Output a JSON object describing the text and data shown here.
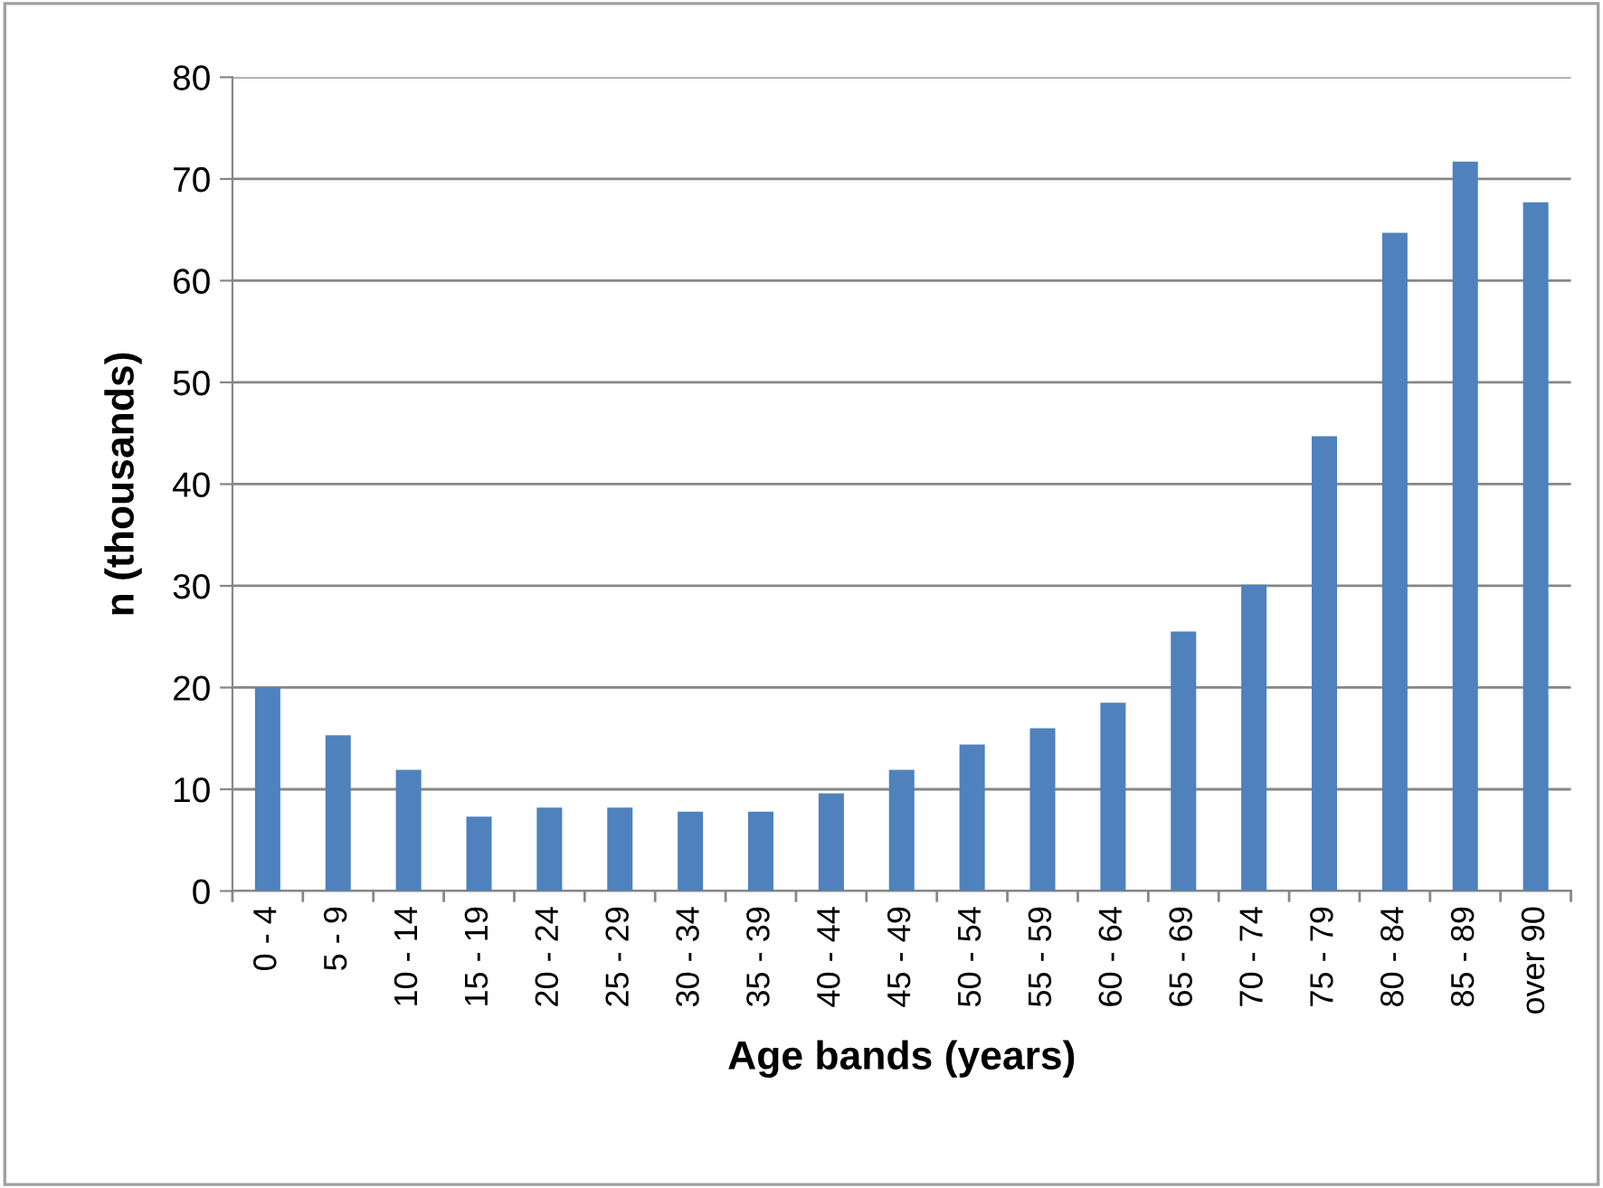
{
  "chart_data": {
    "type": "bar",
    "xlabel": "Age bands (years)",
    "ylabel": "n (thousands)",
    "categories": [
      "0 - 4",
      "5 - 9",
      "10 - 14",
      "15 - 19",
      "20 - 24",
      "25 - 29",
      "30 - 34",
      "35 - 39",
      "40 - 44",
      "45 - 49",
      "50 - 54",
      "55 - 59",
      "60 - 64",
      "65 - 69",
      "70 - 74",
      "75 - 79",
      "80 - 84",
      "85 - 89",
      "over 90"
    ],
    "series": [
      {
        "color": "#4f81bd",
        "values": [
          20.0,
          15.3,
          11.9,
          7.3,
          8.2,
          8.2,
          7.8,
          7.8,
          9.6,
          11.9,
          14.4,
          16.0,
          18.5,
          25.5,
          30.1,
          44.7,
          64.7,
          71.7,
          67.7
        ]
      }
    ],
    "ylim": [
      0,
      80
    ],
    "yticks": [
      0,
      10,
      20,
      30,
      40,
      50,
      60,
      70,
      80
    ],
    "grid": "y",
    "legend": false
  }
}
